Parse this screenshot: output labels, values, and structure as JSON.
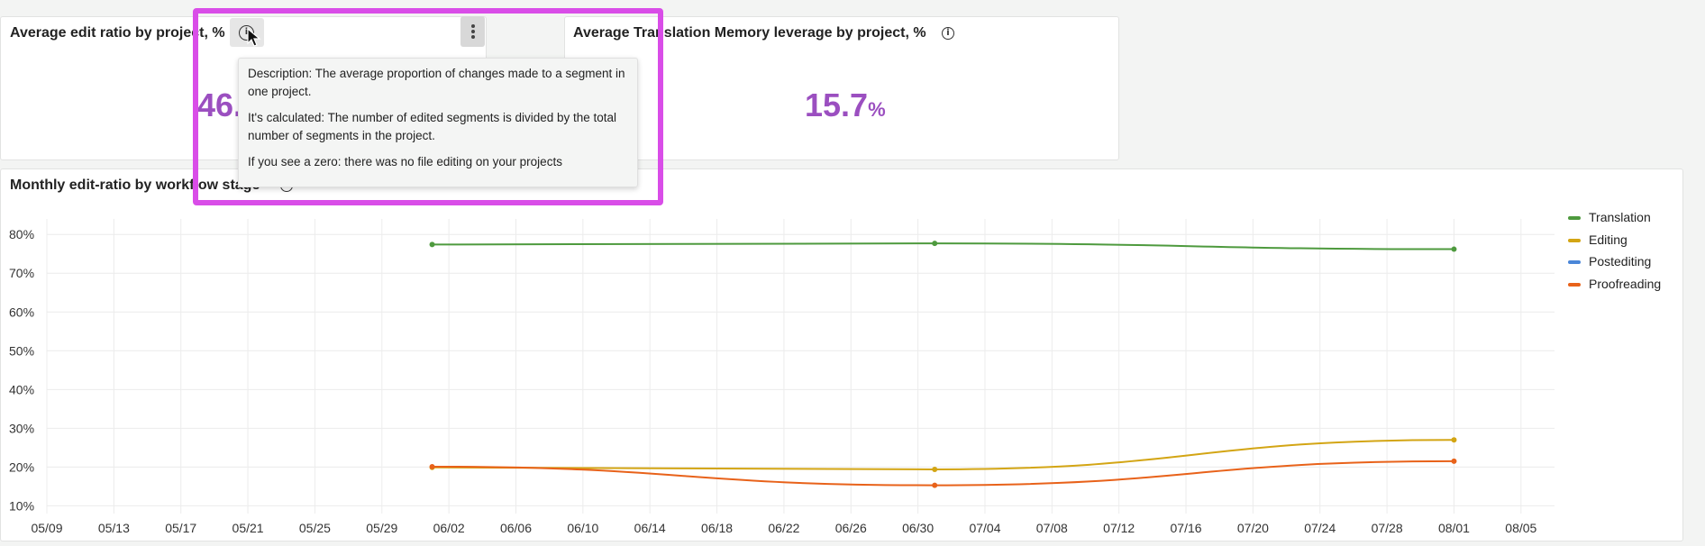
{
  "cards": {
    "edit_ratio": {
      "title": "Average edit ratio by project, %",
      "value_partial": "46."
    },
    "tm_leverage": {
      "title": "Average Translation Memory leverage by project, %",
      "value": "15.7",
      "unit": "%"
    },
    "monthly": {
      "title": "Monthly edit-ratio by workflow stage"
    }
  },
  "tooltip": {
    "description": "Description: The average proportion of changes made to a segment in one project.",
    "calculated": "It's calculated: The number of edited segments is divided by the total number of segments in the project.",
    "zero": "If you see a zero: there was no file editing on your projects"
  },
  "icons": {
    "info": "info-icon",
    "menu": "kebab-menu-icon",
    "cursor": "mouse-cursor-icon"
  },
  "colors": {
    "accent": "#9b4fc0",
    "highlight": "#d94de8",
    "translation": "#4e9a3e",
    "editing": "#d3a514",
    "postediting": "#4a86d8",
    "proofreading": "#e8621a"
  },
  "chart_data": {
    "type": "line",
    "title": "Monthly edit-ratio by workflow stage",
    "x_ticks": [
      "05/09",
      "05/13",
      "05/17",
      "05/21",
      "05/25",
      "05/29",
      "06/02",
      "06/06",
      "06/10",
      "06/14",
      "06/18",
      "06/22",
      "06/26",
      "06/30",
      "07/04",
      "07/08",
      "07/12",
      "07/16",
      "07/20",
      "07/24",
      "07/28",
      "08/01",
      "08/05"
    ],
    "y_ticks": [
      "10%",
      "20%",
      "30%",
      "40%",
      "50%",
      "60%",
      "70%",
      "80%"
    ],
    "ylim": [
      8,
      84
    ],
    "xlim": [
      "05/09",
      "08/07"
    ],
    "grid": true,
    "legend_position": "right",
    "series": [
      {
        "name": "Translation",
        "color": "#4e9a3e",
        "points": [
          [
            "06/01",
            77.4
          ],
          [
            "07/01",
            77.7
          ],
          [
            "08/01",
            76.2
          ]
        ]
      },
      {
        "name": "Editing",
        "color": "#d3a514",
        "points": [
          [
            "06/01",
            19.9
          ],
          [
            "07/01",
            19.4
          ],
          [
            "08/01",
            27.0
          ]
        ]
      },
      {
        "name": "Postediting",
        "color": "#4a86d8",
        "points": []
      },
      {
        "name": "Proofreading",
        "color": "#e8621a",
        "points": [
          [
            "06/01",
            20.1
          ],
          [
            "07/01",
            15.3
          ],
          [
            "08/01",
            21.5
          ]
        ]
      }
    ]
  }
}
